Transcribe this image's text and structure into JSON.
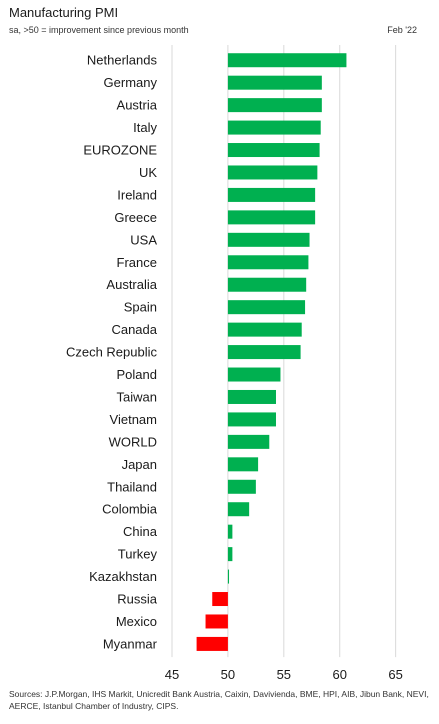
{
  "header": {
    "title": "Manufacturing PMI",
    "subtitle": "sa, >50 = improvement since previous month",
    "date": "Feb '22"
  },
  "footer": {
    "sources": "Sources: J.P.Morgan, IHS Markit, Unicredit Bank Austria, Caixin, Davivienda, BME, HPI, AIB, Jibun Bank, NEVI, AERCE, Istanbul Chamber of Industry, CIPS."
  },
  "colors": {
    "positive": "#00b050",
    "negative": "#ff0000",
    "gridline": "#d9d9d9"
  },
  "chart_data": {
    "type": "bar",
    "orientation": "horizontal",
    "baseline": 50,
    "title": "Manufacturing PMI",
    "categories": [
      "Netherlands",
      "Germany",
      "Austria",
      "Italy",
      "EUROZONE",
      "UK",
      "Ireland",
      "Greece",
      "USA",
      "France",
      "Australia",
      "Spain",
      "Canada",
      "Czech Republic",
      "Poland",
      "Taiwan",
      "Vietnam",
      "WORLD",
      "Japan",
      "Thailand",
      "Colombia",
      "China",
      "Turkey",
      "Kazakhstan",
      "Russia",
      "Mexico",
      "Myanmar"
    ],
    "values": [
      60.6,
      58.4,
      58.4,
      58.3,
      58.2,
      58.0,
      57.8,
      57.8,
      57.3,
      57.2,
      57.0,
      56.9,
      56.6,
      56.5,
      54.7,
      54.3,
      54.3,
      53.7,
      52.7,
      52.5,
      51.9,
      50.4,
      50.4,
      50.1,
      48.6,
      48.0,
      47.2
    ],
    "xticks": [
      "45",
      "50",
      "55",
      "60",
      "65"
    ],
    "xlim": [
      45,
      67
    ],
    "grid": true
  }
}
